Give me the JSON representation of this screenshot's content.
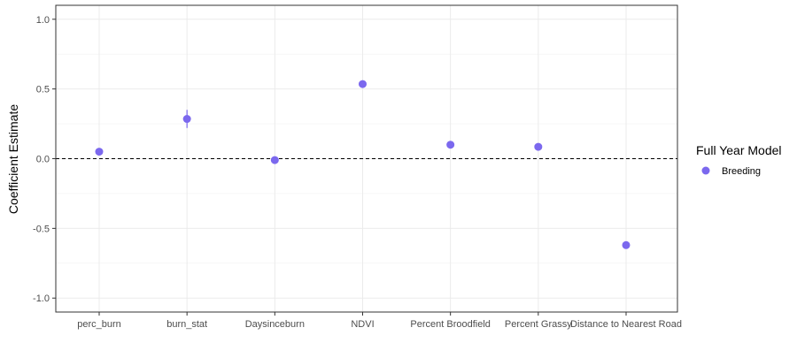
{
  "chart_data": {
    "type": "scatter",
    "title": "",
    "xlabel": "",
    "ylabel": "Coefficient Estimate",
    "categories": [
      "perc_burn",
      "burn_stat",
      "Daysinceburn",
      "NDVI",
      "Percent Broodfield",
      "Percent Grassy",
      "Distance to Nearest Road"
    ],
    "series": [
      {
        "name": "Breeding",
        "color": "#7B68EE",
        "values": [
          0.05,
          0.285,
          -0.01,
          0.535,
          0.1,
          0.085,
          -0.62
        ],
        "lower": [
          0.04,
          0.22,
          -0.02,
          0.525,
          0.09,
          0.075,
          -0.63
        ],
        "upper": [
          0.06,
          0.35,
          0.0,
          0.545,
          0.11,
          0.095,
          -0.61
        ]
      }
    ],
    "ylim": [
      -1.1,
      1.1
    ],
    "yticks": [
      -1.0,
      -0.5,
      0.0,
      0.5,
      1.0
    ],
    "ytick_labels": [
      "-1.0",
      "-0.5",
      "0.0",
      "0.5",
      "1.0"
    ],
    "reference_line": 0,
    "grid": true,
    "legend": {
      "title": "Full Year Model",
      "placement": "right",
      "entries": [
        "Breeding"
      ]
    }
  }
}
